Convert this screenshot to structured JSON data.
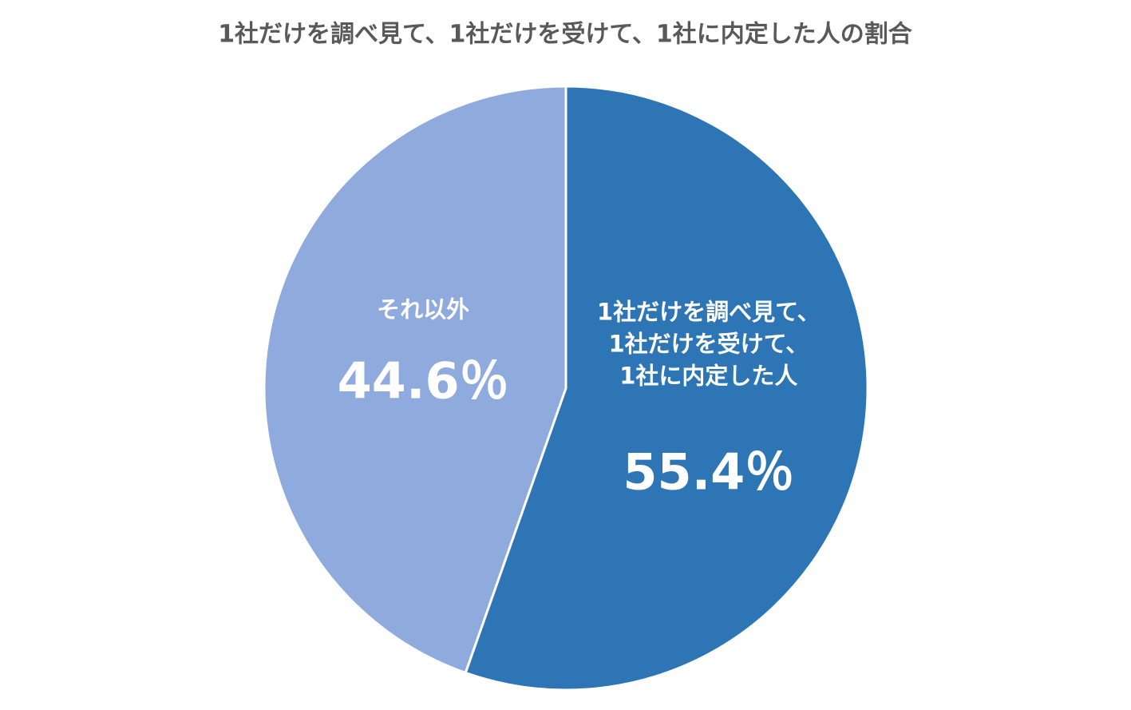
{
  "chart_data": {
    "type": "pie",
    "title": "1社だけを調べ見て、1社だけを受けて、1社に内定した人の割合",
    "categories": [
      "1社だけを調べ見て、\n1社だけを受けて、\n1社に内定した人",
      "それ以外"
    ],
    "values": [
      55.4,
      44.6
    ],
    "value_labels": [
      "55.4％",
      "44.6％"
    ],
    "colors": [
      "#2e75b6",
      "#8faadc"
    ]
  }
}
